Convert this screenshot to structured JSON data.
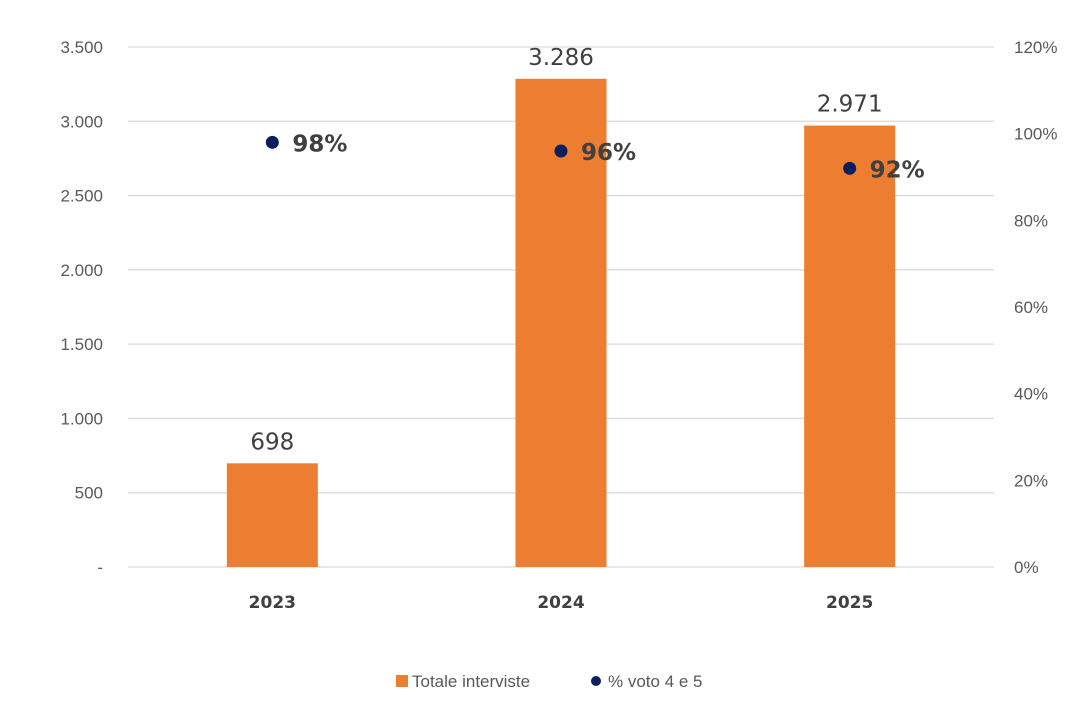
{
  "chart_data": {
    "type": "bar",
    "categories": [
      "2023",
      "2024",
      "2025"
    ],
    "series": [
      {
        "name": "Totale interviste",
        "type": "bar",
        "axis": "left",
        "values": [
          698,
          3286,
          2971
        ],
        "labels": [
          "698",
          "3.286",
          "2.971"
        ],
        "color": "#ED7D31"
      },
      {
        "name": "% voto 4 e 5",
        "type": "scatter",
        "axis": "right",
        "values": [
          98,
          96,
          92
        ],
        "labels": [
          "98%",
          "96%",
          "92%"
        ],
        "color": "#0B1F5C"
      }
    ],
    "y_left": {
      "ylim": [
        0,
        3500
      ],
      "ticks": [
        0,
        500,
        1000,
        1500,
        2000,
        2500,
        3000,
        3500
      ],
      "tick_labels": [
        "-",
        "500",
        "1.000",
        "1.500",
        "2.000",
        "2.500",
        "3.000",
        "3.500"
      ]
    },
    "y_right": {
      "ylim": [
        0,
        120
      ],
      "ticks": [
        0,
        20,
        40,
        60,
        80,
        100,
        120
      ],
      "tick_labels": [
        "0%",
        "20%",
        "40%",
        "60%",
        "80%",
        "100%",
        "120%"
      ]
    },
    "grid": true,
    "legend": {
      "position": "bottom",
      "entries": [
        "Totale interviste",
        "% voto 4 e 5"
      ]
    },
    "colors": {
      "grid": "#D9D9D9",
      "axis_text": "#595959"
    }
  }
}
